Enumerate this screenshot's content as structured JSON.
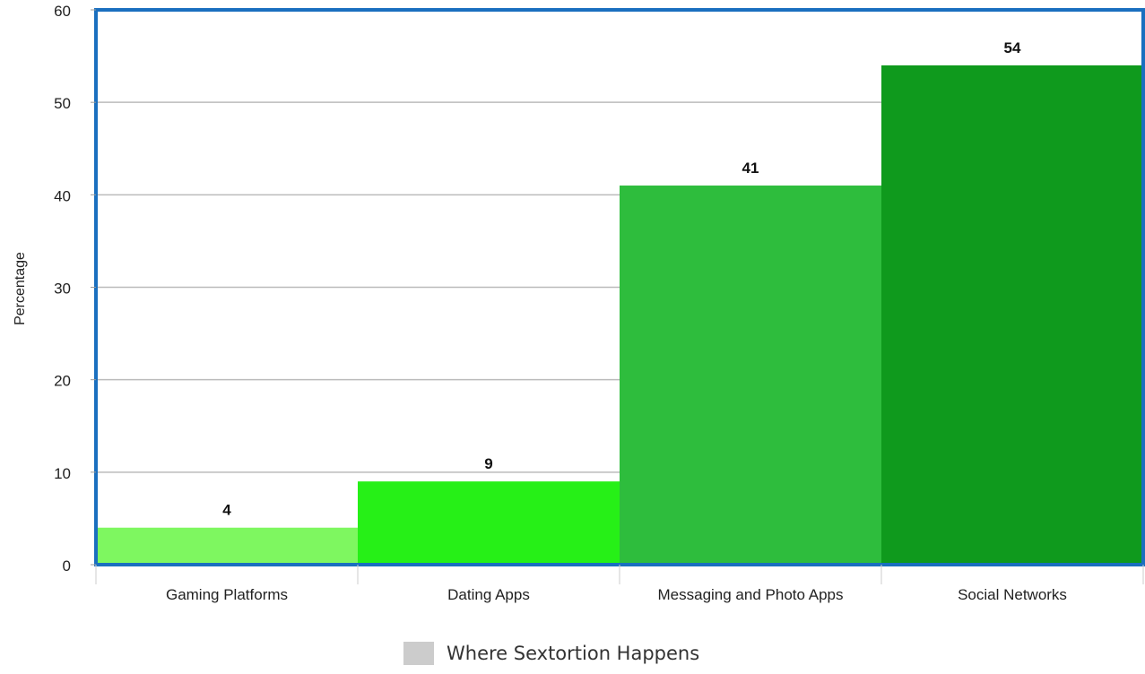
{
  "chart_data": {
    "type": "bar",
    "categories": [
      "Gaming Platforms",
      "Dating Apps",
      "Messaging and Photo Apps",
      "Social Networks"
    ],
    "values": [
      4,
      9,
      41,
      54
    ],
    "data_labels": [
      "4",
      "9",
      "41",
      "54"
    ],
    "bar_colors": [
      "#7ef760",
      "#26f017",
      "#2ebd3d",
      "#0f9a1d"
    ],
    "ylabel": "Percentage",
    "xlabel": "",
    "ylim": [
      0,
      60
    ],
    "yticks": [
      0,
      10,
      20,
      30,
      40,
      50,
      60
    ],
    "grid": true,
    "frame_color": "#1a6fbf",
    "grid_color": "#bbbbbb",
    "legend": {
      "placement": "bottom-center",
      "label": "Where Sextortion Happens",
      "swatch_color": "#cccccc"
    }
  }
}
